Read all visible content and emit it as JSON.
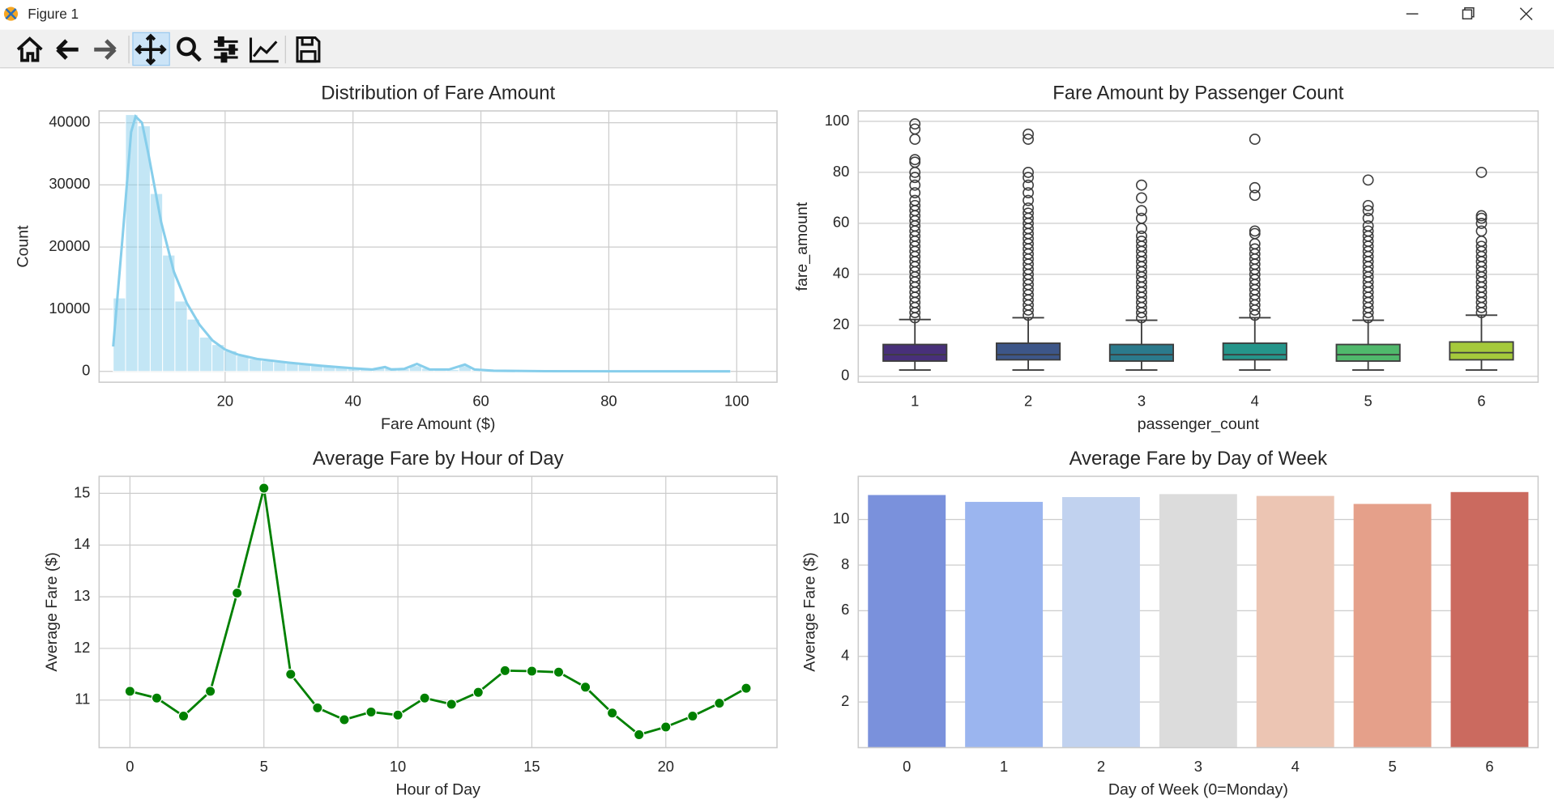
{
  "window": {
    "title": "Figure 1"
  },
  "chart_data": [
    {
      "type": "histogram",
      "title": "Distribution of Fare Amount",
      "xlabel": "Fare Amount ($)",
      "ylabel": "Count",
      "color": "#87ceeb",
      "grid": true,
      "bins": [
        2.5,
        4.43,
        6.36,
        8.29,
        10.22,
        12.15,
        14.08,
        16.01,
        17.94,
        19.87,
        21.8,
        23.73,
        25.66,
        27.59,
        29.52,
        31.45,
        33.38,
        35.31,
        37.24,
        39.17,
        41.1,
        43.03,
        44.96,
        46.89,
        48.82,
        50.75,
        52.68,
        54.61,
        56.54,
        58.47,
        60.4,
        62.33,
        64.26,
        66.19,
        68.12,
        70.05,
        71.98,
        73.91,
        75.84,
        77.77,
        79.7,
        81.63,
        83.56,
        85.49,
        87.42,
        89.35,
        91.28,
        93.21,
        95.14,
        97.07,
        99.0
      ],
      "counts": [
        11800,
        41300,
        39500,
        28600,
        18700,
        11300,
        8400,
        5500,
        4300,
        3300,
        2500,
        2000,
        1700,
        1500,
        1300,
        1100,
        1000,
        800,
        700,
        600,
        500,
        500,
        600,
        400,
        900,
        500,
        300,
        300,
        900,
        200,
        100,
        100,
        100,
        50,
        50,
        50,
        40,
        30,
        30,
        20,
        20,
        20,
        10,
        10,
        10,
        10,
        10,
        10,
        10,
        10
      ],
      "kde": {
        "x": [
          2.5,
          4,
          5.3,
          6,
          7,
          8,
          10,
          12,
          14,
          16,
          18,
          20,
          22,
          25,
          30,
          35,
          40,
          43,
          45,
          46,
          48,
          50,
          52,
          55,
          57.5,
          59,
          62,
          70,
          80,
          99
        ],
        "values": [
          4000,
          22000,
          38500,
          41000,
          40000,
          35000,
          24000,
          16000,
          11000,
          7500,
          5000,
          3500,
          2700,
          2000,
          1400,
          900,
          500,
          300,
          700,
          300,
          400,
          1200,
          300,
          300,
          1100,
          300,
          100,
          30,
          10,
          0
        ]
      },
      "xlim": [
        0.3,
        106.3
      ],
      "ylim": [
        -1750,
        41900
      ],
      "xticks": [
        20,
        40,
        60,
        80,
        100
      ],
      "yticks": [
        0,
        10000,
        20000,
        30000,
        40000
      ]
    },
    {
      "type": "box",
      "title": "Fare Amount by Passenger Count",
      "xlabel": "passenger_count",
      "ylabel": "fare_amount",
      "grid": true,
      "categories": [
        "1",
        "2",
        "3",
        "4",
        "5",
        "6"
      ],
      "colors": [
        "#48307a",
        "#3d5688",
        "#2b7a8c",
        "#25958a",
        "#50b86c",
        "#a5c93b"
      ],
      "boxes": [
        {
          "whislo": 2.5,
          "q1": 6,
          "med": 8.5,
          "q3": 12.5,
          "whishi": 22.3,
          "fliers": [
            23,
            25,
            27,
            29,
            31,
            33,
            35,
            37,
            39,
            41,
            43,
            45,
            47,
            49,
            51,
            53,
            55,
            57,
            59,
            61,
            63,
            65,
            67,
            69,
            72,
            75,
            78,
            80,
            84,
            85,
            93,
            97,
            99
          ]
        },
        {
          "whislo": 2.5,
          "q1": 6.5,
          "med": 8.5,
          "q3": 13,
          "whishi": 23,
          "fliers": [
            24,
            26,
            28,
            30,
            32,
            34,
            36,
            38,
            40,
            42,
            44,
            46,
            48,
            50,
            52,
            54,
            56,
            58,
            60,
            62,
            64,
            66,
            69,
            72,
            75,
            78,
            80,
            93,
            95
          ]
        },
        {
          "whislo": 2.5,
          "q1": 6,
          "med": 8.5,
          "q3": 12.5,
          "whishi": 22,
          "fliers": [
            23,
            25,
            27,
            29,
            31,
            33,
            35,
            37,
            39,
            41,
            43,
            45,
            47,
            49,
            51,
            53,
            55,
            58,
            62,
            65,
            70,
            75
          ]
        },
        {
          "whislo": 2.5,
          "q1": 6.5,
          "med": 8.5,
          "q3": 13,
          "whishi": 23,
          "fliers": [
            24,
            26,
            28,
            30,
            32,
            34,
            36,
            38,
            40,
            42,
            44,
            46,
            48,
            50,
            52,
            56,
            57,
            71,
            74,
            93
          ]
        },
        {
          "whislo": 2.5,
          "q1": 6,
          "med": 8.5,
          "q3": 12.5,
          "whishi": 22,
          "fliers": [
            23,
            25,
            27,
            29,
            31,
            33,
            35,
            37,
            39,
            41,
            43,
            45,
            47,
            49,
            51,
            53,
            55,
            57,
            59,
            62,
            65,
            67,
            77
          ]
        },
        {
          "whislo": 2.5,
          "q1": 6.5,
          "med": 9.3,
          "q3": 13.5,
          "whishi": 24,
          "fliers": [
            25,
            27,
            29,
            31,
            33,
            35,
            37,
            39,
            41,
            43,
            45,
            47,
            49,
            51,
            53,
            57,
            60,
            62,
            63,
            80
          ]
        }
      ],
      "ylim": [
        -2.3,
        104.1
      ],
      "yticks": [
        0,
        20,
        40,
        60,
        80,
        100
      ]
    },
    {
      "type": "line",
      "title": "Average Fare by Hour of Day",
      "xlabel": "Hour of Day",
      "ylabel": "Average Fare ($)",
      "color": "#008000",
      "grid": true,
      "x": [
        0,
        1,
        2,
        3,
        4,
        5,
        6,
        7,
        8,
        9,
        10,
        11,
        12,
        13,
        14,
        15,
        16,
        17,
        18,
        19,
        20,
        21,
        22,
        23
      ],
      "values": [
        11.17,
        11.04,
        10.69,
        11.17,
        13.07,
        15.1,
        11.5,
        10.85,
        10.62,
        10.77,
        10.71,
        11.04,
        10.92,
        11.15,
        11.57,
        11.56,
        11.54,
        11.25,
        10.75,
        10.33,
        10.48,
        10.69,
        10.94,
        11.23
      ],
      "xlim": [
        -1.15,
        24.15
      ],
      "ylim": [
        10.08,
        15.33
      ],
      "xticks": [
        0,
        5,
        10,
        15,
        20
      ],
      "yticks": [
        11,
        12,
        13,
        14,
        15
      ]
    },
    {
      "type": "bar",
      "title": "Average Fare by Day of Week",
      "xlabel": "Day of Week (0=Monday)",
      "ylabel": "Average Fare ($)",
      "grid": true,
      "categories": [
        "0",
        "1",
        "2",
        "3",
        "4",
        "5",
        "6"
      ],
      "values": [
        11.07,
        10.77,
        10.98,
        11.11,
        11.03,
        10.68,
        11.2
      ],
      "colors": [
        "#7a91dc",
        "#9bb5ef",
        "#c1d2ef",
        "#dcdcdc",
        "#ecc5b3",
        "#e5a08a",
        "#cb6a5f"
      ],
      "ylim": [
        0,
        11.89
      ],
      "yticks": [
        2,
        4,
        6,
        8,
        10
      ]
    }
  ]
}
